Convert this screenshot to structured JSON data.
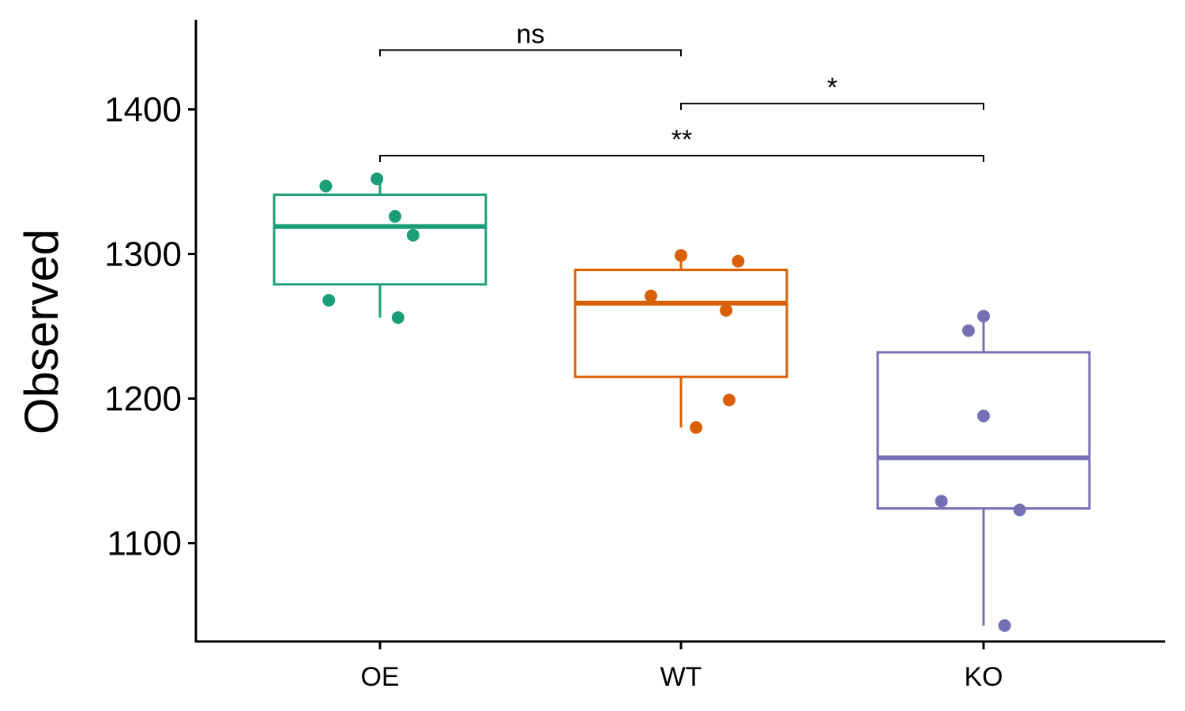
{
  "chart_data": {
    "type": "box",
    "title": "",
    "xlabel": "",
    "ylabel": "Observed",
    "ylim": [
      1032,
      1462
    ],
    "yticks": [
      1100,
      1200,
      1300,
      1400
    ],
    "yticklabels": [
      "1100",
      "1200",
      "1300",
      "1400"
    ],
    "categories": [
      "OE",
      "WT",
      "KO"
    ],
    "groups": [
      {
        "name": "OE",
        "color": "#1B9E77",
        "box": {
          "whisker_low": 1256,
          "q1": 1279,
          "median": 1319,
          "q3": 1341,
          "whisker_high": 1352
        },
        "points": [
          {
            "dx": -0.18,
            "y": 1347
          },
          {
            "dx": -0.01,
            "y": 1352
          },
          {
            "dx": 0.05,
            "y": 1326
          },
          {
            "dx": 0.11,
            "y": 1313
          },
          {
            "dx": -0.17,
            "y": 1268
          },
          {
            "dx": 0.06,
            "y": 1256
          }
        ]
      },
      {
        "name": "WT",
        "color": "#D95F02",
        "box": {
          "whisker_low": 1180,
          "q1": 1215,
          "median": 1266,
          "q3": 1289,
          "whisker_high": 1299
        },
        "points": [
          {
            "dx": 0.0,
            "y": 1299
          },
          {
            "dx": 0.19,
            "y": 1295
          },
          {
            "dx": -0.1,
            "y": 1271
          },
          {
            "dx": 0.15,
            "y": 1261
          },
          {
            "dx": 0.16,
            "y": 1199
          },
          {
            "dx": 0.05,
            "y": 1180
          }
        ]
      },
      {
        "name": "KO",
        "color": "#7570B3",
        "box": {
          "whisker_low": 1043,
          "q1": 1124,
          "median": 1159,
          "q3": 1232,
          "whisker_high": 1257
        },
        "points": [
          {
            "dx": 0.0,
            "y": 1257
          },
          {
            "dx": -0.05,
            "y": 1247
          },
          {
            "dx": 0.0,
            "y": 1188
          },
          {
            "dx": -0.14,
            "y": 1129
          },
          {
            "dx": 0.12,
            "y": 1123
          },
          {
            "dx": 0.07,
            "y": 1043
          }
        ]
      }
    ],
    "comparisons": [
      {
        "from": "OE",
        "to": "WT",
        "label": "ns",
        "y": 1441
      },
      {
        "from": "WT",
        "to": "KO",
        "label": "*",
        "y": 1404
      },
      {
        "from": "OE",
        "to": "KO",
        "label": "**",
        "y": 1368
      }
    ],
    "grid": false,
    "legend": "none"
  }
}
